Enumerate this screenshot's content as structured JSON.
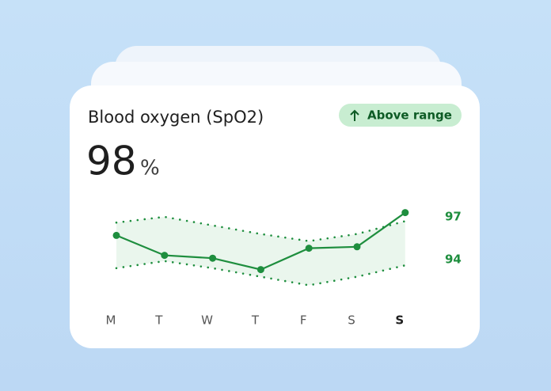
{
  "card": {
    "title": "Blood oxygen (SpO2)",
    "badge": "Above range",
    "value": 98,
    "unit": "%"
  },
  "chart_data": {
    "type": "line",
    "categories": [
      "M",
      "T",
      "W",
      "T",
      "F",
      "S",
      "S"
    ],
    "values": [
      95.7,
      94.3,
      94.1,
      93.3,
      94.8,
      94.9,
      97.3
    ],
    "color": "#1e8e3e",
    "range_upper": [
      96.6,
      97.0,
      96.4,
      95.8,
      95.3,
      95.8,
      96.7
    ],
    "range_lower": [
      93.4,
      93.9,
      93.4,
      92.8,
      92.2,
      92.8,
      93.6
    ],
    "ylim": [
      91,
      98.5
    ],
    "yticks": [
      94,
      97
    ],
    "grid": false
  }
}
